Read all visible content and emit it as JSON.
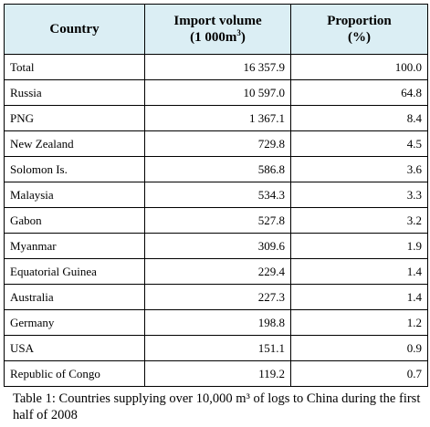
{
  "table": {
    "headers": {
      "country": "Country",
      "import_volume_line1": "Import volume",
      "import_volume_line2": "(1 000m",
      "import_volume_sup": "3",
      "import_volume_close": ")",
      "proportion_line1": "Proportion",
      "proportion_line2": "(%)"
    },
    "header_background": "#dbeef4",
    "rows": [
      {
        "country": "Total",
        "volume": "16 357.9",
        "proportion": "100.0"
      },
      {
        "country": "Russia",
        "volume": "10 597.0",
        "proportion": "64.8"
      },
      {
        "country": "PNG",
        "volume": "1 367.1",
        "proportion": "8.4"
      },
      {
        "country": "New Zealand",
        "volume": "729.8",
        "proportion": "4.5"
      },
      {
        "country": "Solomon Is.",
        "volume": "586.8",
        "proportion": "3.6"
      },
      {
        "country": "Malaysia",
        "volume": "534.3",
        "proportion": "3.3"
      },
      {
        "country": "Gabon",
        "volume": "527.8",
        "proportion": "3.2"
      },
      {
        "country": "Myanmar",
        "volume": "309.6",
        "proportion": "1.9"
      },
      {
        "country": "Equatorial Guinea",
        "volume": "229.4",
        "proportion": "1.4"
      },
      {
        "country": "Australia",
        "volume": "227.3",
        "proportion": "1.4"
      },
      {
        "country": "Germany",
        "volume": "198.8",
        "proportion": "1.2"
      },
      {
        "country": "USA",
        "volume": "151.1",
        "proportion": "0.9"
      },
      {
        "country": "Republic of Congo",
        "volume": "119.2",
        "proportion": "0.7"
      }
    ]
  },
  "caption": "Table 1: Countries supplying over 10,000 m³ of logs to China during the first half of 2008"
}
